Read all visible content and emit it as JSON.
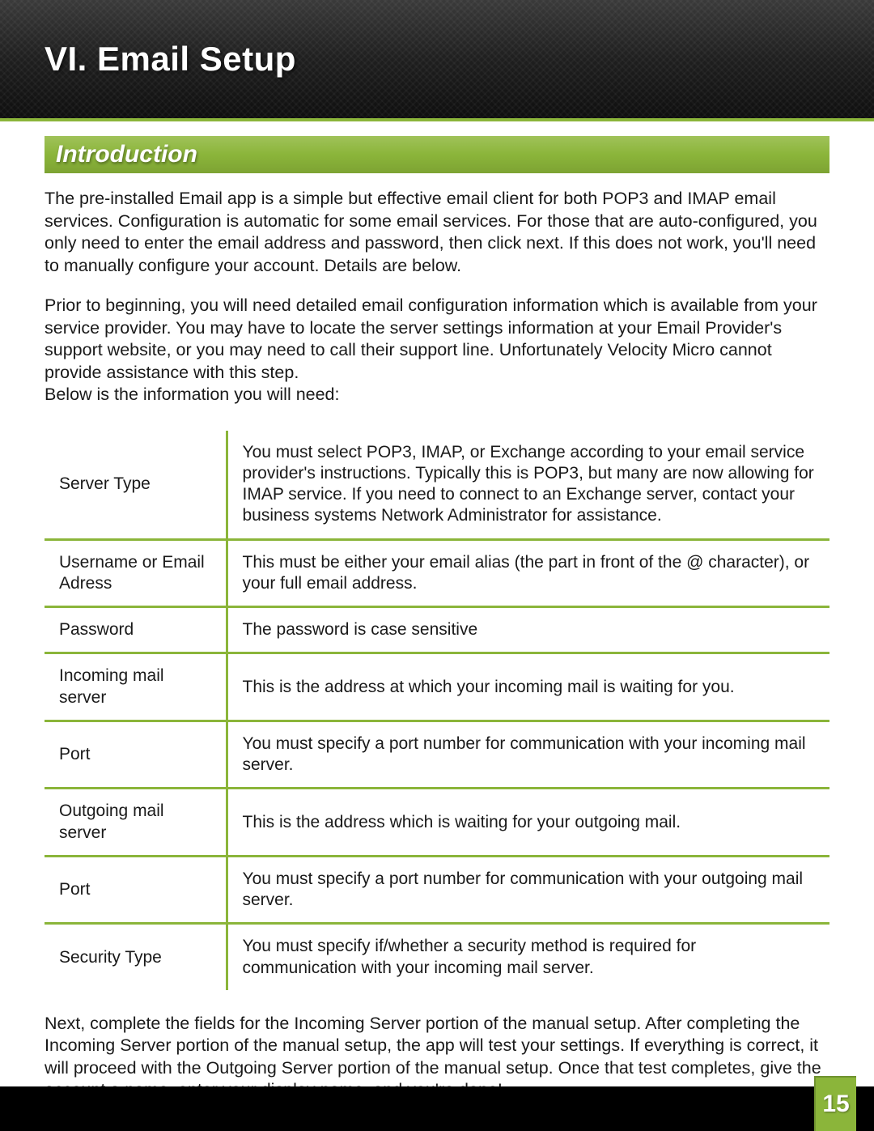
{
  "colors": {
    "accent": "#8bb53a",
    "header_grad_top": "#3a3a3a",
    "header_grad_bottom": "#0f0f0f",
    "text": "#1a1a1a",
    "white": "#ffffff",
    "black": "#000000"
  },
  "header": {
    "title": "VI. Email Setup"
  },
  "section": {
    "title": "Introduction"
  },
  "paragraphs": {
    "p1": "The pre-installed Email app is a simple but effective email client for both POP3 and IMAP email services. Configuration is automatic for some email services. For those that are auto-configured, you only need to enter the email address and password, then click next. If this does not work, you'll need to manually configure your account.  Details are below.",
    "p2": "Prior to beginning, you will need detailed email configuration information which is available from your service provider. You may have to locate the server settings information at your Email Provider's support website, or you may need to call their support line. Unfortunately Velocity Micro cannot provide assistance with this step.\nBelow is the information you will need:",
    "p3": "Next, complete the fields for the Incoming Server portion of the manual setup. After completing the Incoming Server portion of the manual setup, the app will test your settings. If everything is correct, it will proceed with the Outgoing Server portion of the manual setup. Once that test completes, give the account a name, enter your display name, and you're done!"
  },
  "table": {
    "rows": [
      {
        "label": "Server Type",
        "desc": "You must select POP3, IMAP, or Exchange according to your email service provider's instructions. Typically this is POP3, but many are now allowing for IMAP service. If you need to connect to an Exchange server, contact your business systems Network Administrator for assistance."
      },
      {
        "label": "Username or Email Adress",
        "desc": "This must be either your email alias (the part in front of the @ character), or your full email address."
      },
      {
        "label": "Password",
        "desc": "The password is case sensitive"
      },
      {
        "label": "Incoming mail server",
        "desc": "This is the address at which your incoming mail is waiting for you."
      },
      {
        "label": "Port",
        "desc": "You must specify a port number for communication with your incoming mail server."
      },
      {
        "label": "Outgoing mail server",
        "desc": "This is the address which is waiting for your outgoing mail."
      },
      {
        "label": "Port",
        "desc": "You must specify a port number for communication with your outgoing mail server."
      },
      {
        "label": "Security Type",
        "desc": "You must specify if/whether a security method is required for communication with your incoming mail server."
      }
    ]
  },
  "page_number": "15"
}
